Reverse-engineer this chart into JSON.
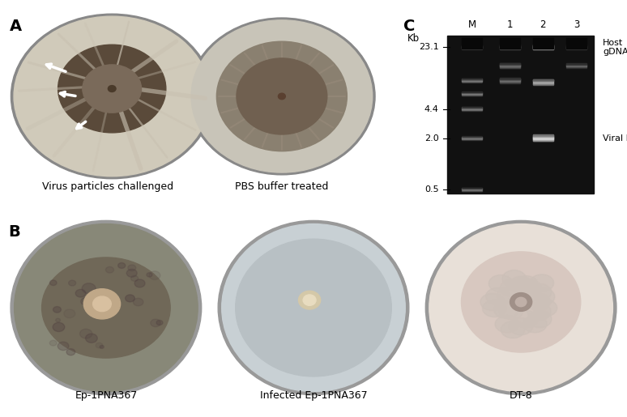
{
  "panel_A_label": "A",
  "panel_B_label": "B",
  "panel_C_label": "C",
  "panel_A_captions": [
    "Virus particles challenged",
    "PBS buffer treated"
  ],
  "panel_B_captions": [
    "Ep-1PNA367",
    "Infected Ep-1PNA367",
    "DT-8"
  ],
  "gel_lane_labels": [
    "M",
    "1",
    "2",
    "3"
  ],
  "gel_kb_labels": [
    "23.1",
    "4.4",
    "2.0",
    "0.5"
  ],
  "gel_kb_label_top": "Kb",
  "gel_right_labels": [
    "Host\ngDNA",
    "Viral DNA"
  ],
  "background_color": "#ffffff",
  "gel_background": "#000000",
  "gel_band_color": "#cccccc",
  "label_fontsize": 14,
  "caption_fontsize": 9,
  "gel_label_fontsize": 8.5
}
